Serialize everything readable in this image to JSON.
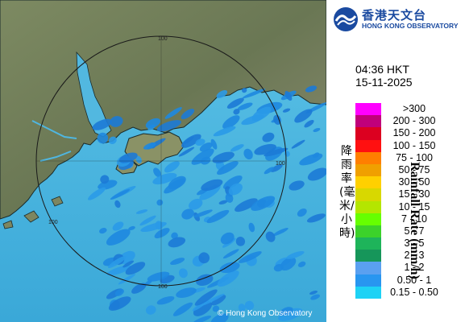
{
  "header": {
    "logo_chinese": "香港天文台",
    "logo_english": "HONG KONG OBSERVATORY"
  },
  "timestamp": {
    "time": "04:36 HKT",
    "date": "15-11-2025"
  },
  "legend": {
    "title_chinese": "降雨率(毫米/小時)",
    "title_english": "Rainfall Rate (mm/h)",
    "items": [
      {
        "label": ">300",
        "color": "#ff00ff"
      },
      {
        "label": "200 - 300",
        "color": "#c0007a"
      },
      {
        "label": "150 - 200",
        "color": "#dc0020"
      },
      {
        "label": "100 - 150",
        "color": "#ff1010"
      },
      {
        "label": "75 - 100",
        "color": "#ff7f00"
      },
      {
        "label": "50 - 75",
        "color": "#f0a000"
      },
      {
        "label": "30 - 50",
        "color": "#ffd000"
      },
      {
        "label": "15 - 30",
        "color": "#d8d800"
      },
      {
        "label": "10 - 15",
        "color": "#b4e600"
      },
      {
        "label": "7 - 10",
        "color": "#66ff00"
      },
      {
        "label": "5 - 7",
        "color": "#3cd22a"
      },
      {
        "label": "3 - 5",
        "color": "#1eb45a"
      },
      {
        "label": "2 - 3",
        "color": "#16965a"
      },
      {
        "label": "1 - 2",
        "color": "#5aa0f0"
      },
      {
        "label": "0.50 - 1",
        "color": "#2896f0"
      },
      {
        "label": "0.15 - 0.50",
        "color": "#1ed2f5"
      }
    ]
  },
  "map": {
    "range_ring_labels": [
      "100",
      "100",
      "100",
      "100"
    ],
    "land_color": "#6f7e58",
    "sea_color": "#45b0dc",
    "rain_color": "#1e88e0"
  },
  "footer": {
    "copyright": "© Hong Kong Observatory"
  }
}
